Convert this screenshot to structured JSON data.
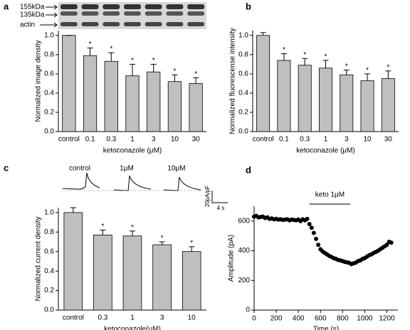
{
  "chart_data": [
    {
      "type": "bar",
      "panel_label": "a",
      "blot_labels": [
        "155kDa",
        "135kDa",
        "actin"
      ],
      "categories": [
        "control",
        "0.1",
        "0.3",
        "1",
        "3",
        "10",
        "30"
      ],
      "values": [
        1.0,
        0.79,
        0.73,
        0.58,
        0.62,
        0.52,
        0.5
      ],
      "errors": [
        0.0,
        0.08,
        0.09,
        0.12,
        0.08,
        0.07,
        0.06
      ],
      "significance": [
        null,
        "*",
        "*",
        "*",
        "*",
        "*",
        "*"
      ],
      "ylabel": "Normalized image density",
      "xlabel": "ketoconazole (μM)",
      "ylim": [
        0,
        1.05
      ],
      "yticks": [
        {
          "value": 0,
          "label": "0.0"
        },
        0.2,
        0.4,
        0.6,
        0.8,
        {
          "value": 1,
          "label": "1.0"
        }
      ],
      "color": "#bfbfbf"
    },
    {
      "type": "bar",
      "panel_label": "b",
      "categories": [
        "control",
        "0.1",
        "0.3",
        "1",
        "3",
        "10",
        "30"
      ],
      "values": [
        1.0,
        0.74,
        0.69,
        0.66,
        0.59,
        0.53,
        0.55
      ],
      "errors": [
        0.03,
        0.07,
        0.07,
        0.08,
        0.05,
        0.07,
        0.08
      ],
      "significance": [
        null,
        "*",
        "*",
        "*",
        "*",
        "*",
        "*"
      ],
      "ylabel": "Normalized fluorescense intensity",
      "xlabel": "ketoconazole (μM)",
      "ylim": [
        0,
        1.05
      ],
      "yticks": [
        {
          "value": 0,
          "label": "0.0"
        },
        0.2,
        0.4,
        0.6,
        0.8,
        {
          "value": 1,
          "label": "1.0"
        }
      ],
      "color": "#bfbfbf"
    },
    {
      "type": "bar",
      "panel_label": "c",
      "trace_labels": [
        "control",
        "1μM",
        "10μM"
      ],
      "scale_bar": [
        "20pA/pF",
        "4 s"
      ],
      "categories": [
        "control",
        "0.3",
        "1",
        "3",
        "10"
      ],
      "values": [
        1.0,
        0.77,
        0.76,
        0.67,
        0.6
      ],
      "errors": [
        0.05,
        0.05,
        0.05,
        0.03,
        0.05
      ],
      "significance": [
        null,
        "*",
        "*",
        "*",
        "*"
      ],
      "ylabel": "Normalized current density",
      "xlabel": "ketoconazole(μM)",
      "ylim": [
        0,
        1.05
      ],
      "yticks": [
        {
          "value": 0,
          "label": "0.0"
        },
        0.2,
        0.4,
        0.6,
        0.8,
        {
          "value": 1,
          "label": "1.0"
        }
      ],
      "color": "#bfbfbf"
    },
    {
      "type": "scatter",
      "panel_label": "d",
      "x": [
        0,
        20,
        40,
        60,
        80,
        100,
        120,
        140,
        160,
        180,
        200,
        220,
        240,
        260,
        280,
        300,
        320,
        340,
        360,
        380,
        400,
        420,
        440,
        460,
        480,
        500,
        520,
        540,
        560,
        580,
        600,
        620,
        640,
        660,
        680,
        700,
        720,
        740,
        760,
        780,
        800,
        820,
        840,
        860,
        880,
        900,
        920,
        940,
        960,
        980,
        1000,
        1020,
        1040,
        1060,
        1080,
        1100,
        1120,
        1140,
        1160,
        1180,
        1200,
        1220,
        1240
      ],
      "values": [
        630,
        635,
        625,
        628,
        630,
        620,
        625,
        615,
        618,
        612,
        615,
        610,
        612,
        608,
        610,
        612,
        605,
        610,
        608,
        605,
        610,
        600,
        612,
        605,
        615,
        580,
        555,
        520,
        480,
        440,
        410,
        395,
        385,
        375,
        365,
        358,
        350,
        345,
        338,
        335,
        330,
        325,
        322,
        318,
        310,
        315,
        320,
        330,
        335,
        345,
        350,
        360,
        370,
        375,
        385,
        392,
        400,
        410,
        420,
        430,
        440,
        460,
        455
      ],
      "annotation": {
        "text": "keto 1μM",
        "x": [
          500,
          870
        ]
      },
      "xlabel": "Time (s)",
      "ylabel": "Amplitude (pA)",
      "xlim": [
        0,
        1300
      ],
      "xticks": [
        0,
        200,
        400,
        600,
        800,
        1000,
        1200
      ],
      "ylim": [
        0,
        700
      ],
      "yticks": [
        0,
        200,
        400,
        600
      ],
      "color": "#000000"
    }
  ]
}
